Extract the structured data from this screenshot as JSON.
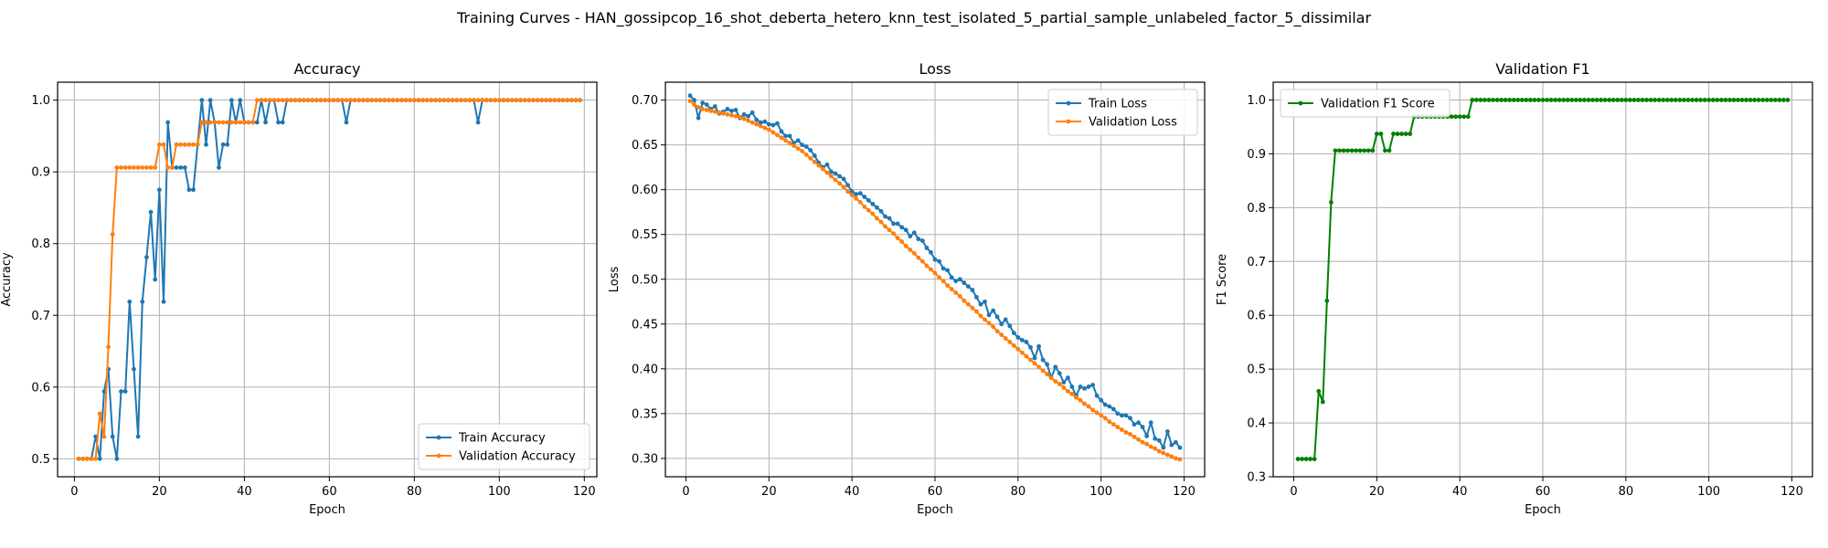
{
  "figure": {
    "title": "Training Curves - HAN_gossipcop_16_shot_deberta_hetero_knn_test_isolated_5_partial_sample_unlabeled_factor_5_dissimilar"
  },
  "chart_data": [
    {
      "type": "line",
      "title": "Accuracy",
      "xlabel": "Epoch",
      "ylabel": "Accuracy",
      "xlim": [
        -3.95,
        122.95
      ],
      "ylim": [
        0.475,
        1.025
      ],
      "xticks": [
        0,
        20,
        40,
        60,
        80,
        100,
        120
      ],
      "yticks": [
        0.5,
        0.6,
        0.7,
        0.8,
        0.9,
        1.0
      ],
      "ytick_labels": [
        "0.5",
        "0.6",
        "0.7",
        "0.8",
        "0.9",
        "1.0"
      ],
      "grid": true,
      "legend_loc": "lower-right",
      "series": [
        {
          "name": "Train Accuracy",
          "color": "#1f77b4",
          "x_start": 1,
          "values": [
            0.5,
            0.5,
            0.5,
            0.5,
            0.531,
            0.5,
            0.594,
            0.625,
            0.531,
            0.5,
            0.594,
            0.594,
            0.719,
            0.625,
            0.531,
            0.719,
            0.781,
            0.844,
            0.75,
            0.875,
            0.719,
            0.969,
            0.906,
            0.906,
            0.906,
            0.906,
            0.875,
            0.875,
            0.938,
            1.0,
            0.938,
            1.0,
            0.969,
            0.906,
            0.938,
            0.938,
            1.0,
            0.969,
            1.0,
            0.969,
            0.969,
            0.969,
            0.969,
            1.0,
            0.969,
            1.0,
            1.0,
            0.969,
            0.969,
            1.0,
            1.0,
            1.0,
            1.0,
            1.0,
            1.0,
            1.0,
            1.0,
            1.0,
            1.0,
            1.0,
            1.0,
            1.0,
            1.0,
            0.969,
            1.0,
            1.0,
            1.0,
            1.0,
            1.0,
            1.0,
            1.0,
            1.0,
            1.0,
            1.0,
            1.0,
            1.0,
            1.0,
            1.0,
            1.0,
            1.0,
            1.0,
            1.0,
            1.0,
            1.0,
            1.0,
            1.0,
            1.0,
            1.0,
            1.0,
            1.0,
            1.0,
            1.0,
            1.0,
            1.0,
            0.969,
            1.0,
            1.0,
            1.0,
            1.0,
            1.0,
            1.0,
            1.0,
            1.0,
            1.0,
            1.0,
            1.0,
            1.0,
            1.0,
            1.0,
            1.0,
            1.0,
            1.0,
            1.0,
            1.0,
            1.0,
            1.0,
            1.0,
            1.0,
            1.0
          ]
        },
        {
          "name": "Validation Accuracy",
          "color": "#ff7f0e",
          "x_start": 1,
          "values": [
            0.5,
            0.5,
            0.5,
            0.5,
            0.5,
            0.563,
            0.531,
            0.656,
            0.813,
            0.906,
            0.906,
            0.906,
            0.906,
            0.906,
            0.906,
            0.906,
            0.906,
            0.906,
            0.906,
            0.938,
            0.938,
            0.906,
            0.906,
            0.938,
            0.938,
            0.938,
            0.938,
            0.938,
            0.938,
            0.969,
            0.969,
            0.969,
            0.969,
            0.969,
            0.969,
            0.969,
            0.969,
            0.969,
            0.969,
            0.969,
            0.969,
            0.969,
            1.0,
            1.0,
            1.0,
            1.0,
            1.0,
            1.0,
            1.0,
            1.0,
            1.0,
            1.0,
            1.0,
            1.0,
            1.0,
            1.0,
            1.0,
            1.0,
            1.0,
            1.0,
            1.0,
            1.0,
            1.0,
            1.0,
            1.0,
            1.0,
            1.0,
            1.0,
            1.0,
            1.0,
            1.0,
            1.0,
            1.0,
            1.0,
            1.0,
            1.0,
            1.0,
            1.0,
            1.0,
            1.0,
            1.0,
            1.0,
            1.0,
            1.0,
            1.0,
            1.0,
            1.0,
            1.0,
            1.0,
            1.0,
            1.0,
            1.0,
            1.0,
            1.0,
            1.0,
            1.0,
            1.0,
            1.0,
            1.0,
            1.0,
            1.0,
            1.0,
            1.0,
            1.0,
            1.0,
            1.0,
            1.0,
            1.0,
            1.0,
            1.0,
            1.0,
            1.0,
            1.0,
            1.0,
            1.0,
            1.0,
            1.0,
            1.0,
            1.0
          ]
        }
      ]
    },
    {
      "type": "line",
      "title": "Loss",
      "xlabel": "Epoch",
      "ylabel": "Loss",
      "xlim": [
        -4.95,
        124.95
      ],
      "ylim": [
        0.2795,
        0.72
      ],
      "xticks": [
        0,
        20,
        40,
        60,
        80,
        100,
        120
      ],
      "yticks": [
        0.3,
        0.35,
        0.4,
        0.45,
        0.5,
        0.55,
        0.6,
        0.65,
        0.7
      ],
      "ytick_labels": [
        "0.30",
        "0.35",
        "0.40",
        "0.45",
        "0.50",
        "0.55",
        "0.60",
        "0.65",
        "0.70"
      ],
      "grid": true,
      "legend_loc": "upper-right",
      "series": [
        {
          "name": "Train Loss",
          "color": "#1f77b4",
          "x_start": 1,
          "values": [
            0.705,
            0.7,
            0.68,
            0.697,
            0.695,
            0.69,
            0.693,
            0.685,
            0.687,
            0.69,
            0.688,
            0.689,
            0.68,
            0.684,
            0.682,
            0.686,
            0.678,
            0.675,
            0.676,
            0.673,
            0.672,
            0.674,
            0.665,
            0.66,
            0.66,
            0.652,
            0.655,
            0.65,
            0.648,
            0.644,
            0.638,
            0.63,
            0.625,
            0.628,
            0.62,
            0.618,
            0.615,
            0.612,
            0.605,
            0.598,
            0.595,
            0.596,
            0.592,
            0.588,
            0.584,
            0.58,
            0.576,
            0.57,
            0.568,
            0.562,
            0.562,
            0.558,
            0.555,
            0.548,
            0.552,
            0.545,
            0.543,
            0.535,
            0.53,
            0.522,
            0.52,
            0.512,
            0.51,
            0.502,
            0.498,
            0.5,
            0.496,
            0.492,
            0.488,
            0.48,
            0.472,
            0.475,
            0.46,
            0.465,
            0.458,
            0.45,
            0.455,
            0.448,
            0.44,
            0.435,
            0.432,
            0.43,
            0.424,
            0.412,
            0.425,
            0.41,
            0.405,
            0.39,
            0.402,
            0.395,
            0.385,
            0.39,
            0.38,
            0.37,
            0.38,
            0.378,
            0.38,
            0.382,
            0.37,
            0.365,
            0.36,
            0.358,
            0.355,
            0.35,
            0.348,
            0.348,
            0.345,
            0.338,
            0.34,
            0.335,
            0.325,
            0.34,
            0.322,
            0.32,
            0.312,
            0.33,
            0.315,
            0.318,
            0.312
          ]
        },
        {
          "name": "Validation Loss",
          "color": "#ff7f0e",
          "x_start": 1,
          "values": [
            0.699,
            0.695,
            0.692,
            0.69,
            0.689,
            0.688,
            0.687,
            0.686,
            0.685,
            0.684,
            0.683,
            0.682,
            0.681,
            0.679,
            0.677,
            0.675,
            0.673,
            0.671,
            0.669,
            0.667,
            0.664,
            0.661,
            0.658,
            0.655,
            0.652,
            0.649,
            0.646,
            0.643,
            0.639,
            0.635,
            0.631,
            0.627,
            0.623,
            0.619,
            0.615,
            0.611,
            0.607,
            0.603,
            0.598,
            0.594,
            0.59,
            0.586,
            0.581,
            0.577,
            0.573,
            0.568,
            0.564,
            0.559,
            0.555,
            0.551,
            0.546,
            0.542,
            0.537,
            0.533,
            0.529,
            0.524,
            0.52,
            0.515,
            0.511,
            0.507,
            0.502,
            0.498,
            0.493,
            0.489,
            0.485,
            0.481,
            0.476,
            0.472,
            0.468,
            0.464,
            0.459,
            0.455,
            0.451,
            0.447,
            0.442,
            0.438,
            0.434,
            0.43,
            0.426,
            0.422,
            0.418,
            0.414,
            0.41,
            0.406,
            0.402,
            0.398,
            0.394,
            0.39,
            0.386,
            0.383,
            0.379,
            0.375,
            0.372,
            0.368,
            0.365,
            0.361,
            0.358,
            0.354,
            0.351,
            0.348,
            0.345,
            0.341,
            0.338,
            0.335,
            0.332,
            0.329,
            0.327,
            0.324,
            0.321,
            0.318,
            0.316,
            0.313,
            0.311,
            0.308,
            0.306,
            0.304,
            0.302,
            0.3,
            0.299
          ]
        }
      ]
    },
    {
      "type": "line",
      "title": "Validation F1",
      "xlabel": "Epoch",
      "ylabel": "F1 Score",
      "xlim": [
        -4.95,
        124.95
      ],
      "ylim": [
        0.3,
        1.033
      ],
      "xticks": [
        0,
        20,
        40,
        60,
        80,
        100,
        120
      ],
      "yticks": [
        0.3,
        0.4,
        0.5,
        0.6,
        0.7,
        0.8,
        0.9,
        1.0
      ],
      "ytick_labels": [
        "0.3",
        "0.4",
        "0.5",
        "0.6",
        "0.7",
        "0.8",
        "0.9",
        "1.0"
      ],
      "grid": true,
      "legend_loc": "upper-left",
      "series": [
        {
          "name": "Validation F1 Score",
          "color": "#008000",
          "x_start": 1,
          "values": [
            0.333,
            0.333,
            0.333,
            0.333,
            0.333,
            0.459,
            0.439,
            0.627,
            0.81,
            0.906,
            0.906,
            0.906,
            0.906,
            0.906,
            0.906,
            0.906,
            0.906,
            0.906,
            0.906,
            0.937,
            0.937,
            0.906,
            0.906,
            0.937,
            0.937,
            0.937,
            0.937,
            0.937,
            0.969,
            0.969,
            0.969,
            0.969,
            0.969,
            0.969,
            0.969,
            0.969,
            0.969,
            0.969,
            0.969,
            0.969,
            0.969,
            0.969,
            1.0,
            1.0,
            1.0,
            1.0,
            1.0,
            1.0,
            1.0,
            1.0,
            1.0,
            1.0,
            1.0,
            1.0,
            1.0,
            1.0,
            1.0,
            1.0,
            1.0,
            1.0,
            1.0,
            1.0,
            1.0,
            1.0,
            1.0,
            1.0,
            1.0,
            1.0,
            1.0,
            1.0,
            1.0,
            1.0,
            1.0,
            1.0,
            1.0,
            1.0,
            1.0,
            1.0,
            1.0,
            1.0,
            1.0,
            1.0,
            1.0,
            1.0,
            1.0,
            1.0,
            1.0,
            1.0,
            1.0,
            1.0,
            1.0,
            1.0,
            1.0,
            1.0,
            1.0,
            1.0,
            1.0,
            1.0,
            1.0,
            1.0,
            1.0,
            1.0,
            1.0,
            1.0,
            1.0,
            1.0,
            1.0,
            1.0,
            1.0,
            1.0,
            1.0,
            1.0,
            1.0,
            1.0,
            1.0,
            1.0,
            1.0,
            1.0,
            1.0
          ]
        }
      ]
    }
  ]
}
